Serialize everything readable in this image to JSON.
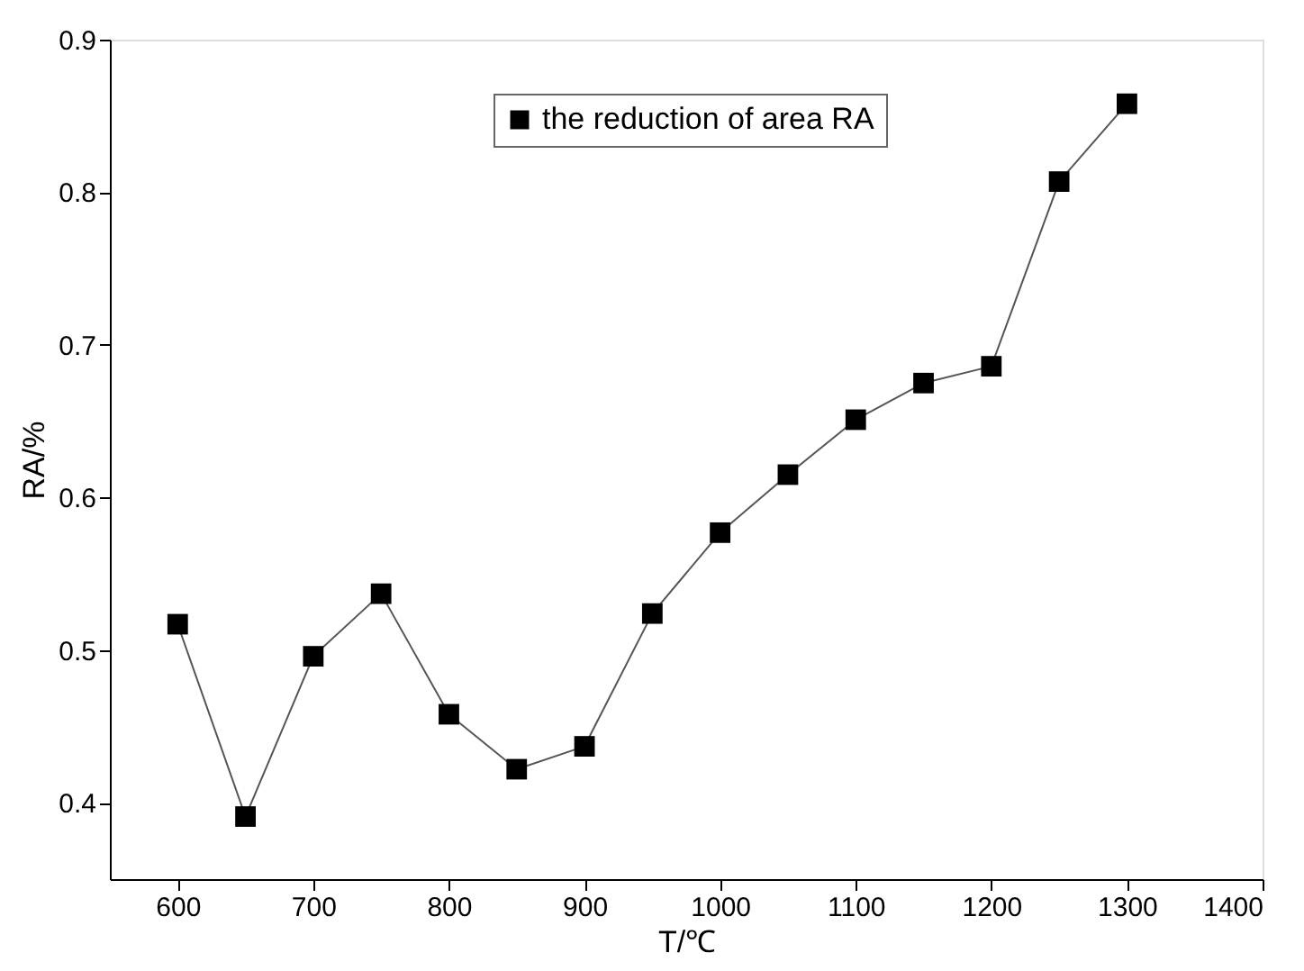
{
  "chart_data": {
    "type": "line",
    "xlabel": "T/℃",
    "ylabel": "RA/%",
    "x": [
      600,
      650,
      700,
      750,
      800,
      850,
      900,
      950,
      1000,
      1050,
      1100,
      1150,
      1200,
      1250,
      1300
    ],
    "series": [
      {
        "name": "the reduction of area RA",
        "color": "#000000",
        "values": [
          0.517,
          0.391,
          0.496,
          0.537,
          0.458,
          0.422,
          0.437,
          0.524,
          0.577,
          0.615,
          0.651,
          0.675,
          0.686,
          0.807,
          0.858
        ]
      }
    ],
    "xlim": [
      550,
      1400
    ],
    "xticks": [
      600,
      700,
      800,
      900,
      1000,
      1100,
      1200,
      1300,
      1400
    ],
    "ylim": [
      0.35,
      0.9
    ],
    "yticks": [
      0.4,
      0.5,
      0.6,
      0.7,
      0.8,
      0.9
    ],
    "grid": false,
    "legend": "top right",
    "marker": "square",
    "line_style": "solid"
  }
}
